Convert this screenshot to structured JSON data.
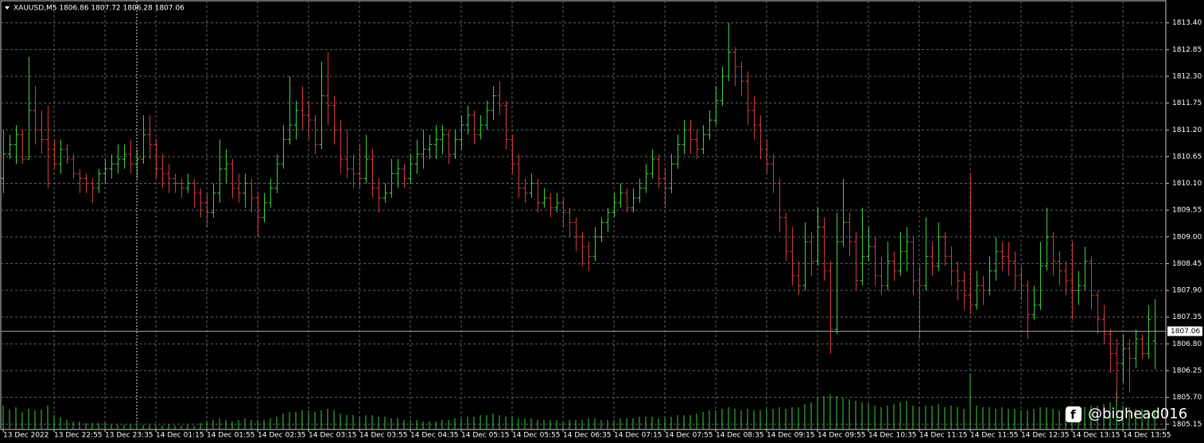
{
  "chart_data": {
    "type": "ohlc",
    "title": "XAUUSD,M5  1806.86 1807.72 1806.28 1807.06",
    "watermark": "@bighead016",
    "up_color": "#3ed13e",
    "down_color": "#d33a3a",
    "volume_color": "#3ed13e",
    "grid": true,
    "ylim": [
      1805.04,
      1813.87
    ],
    "yticks": [
      1805.15,
      {
        "value": 1805.7,
        "label": "1805.70"
      },
      1806.25,
      {
        "value": 1806.8,
        "label": "1806.80"
      },
      1807.35,
      {
        "value": 1807.9,
        "label": "1807.90"
      },
      1808.45,
      {
        "value": 1809,
        "label": "1809.00"
      },
      1809.55,
      {
        "value": 1810.1,
        "label": "1810.10"
      },
      1810.65,
      {
        "value": 1811.2,
        "label": "1811.20"
      },
      1811.75,
      {
        "value": 1812.3,
        "label": "1812.30"
      },
      1812.85,
      {
        "value": 1813.4,
        "label": "1813.40"
      }
    ],
    "categories": [
      "13 Dec 2022",
      null,
      null,
      null,
      null,
      null,
      null,
      null,
      "13 Dec 22:55",
      null,
      null,
      null,
      null,
      null,
      null,
      null,
      "13 Dec 23:35",
      null,
      null,
      null,
      null,
      null,
      null,
      null,
      "14 Dec 01:15",
      null,
      null,
      null,
      null,
      null,
      null,
      null,
      "14 Dec 01:55",
      null,
      null,
      null,
      null,
      null,
      null,
      null,
      "14 Dec 02:35",
      null,
      null,
      null,
      null,
      null,
      null,
      null,
      "14 Dec 03:15",
      null,
      null,
      null,
      null,
      null,
      null,
      null,
      "14 Dec 03:55",
      null,
      null,
      null,
      null,
      null,
      null,
      null,
      "14 Dec 04:35",
      null,
      null,
      null,
      null,
      null,
      null,
      null,
      "14 Dec 05:15",
      null,
      null,
      null,
      null,
      null,
      null,
      null,
      "14 Dec 05:55",
      null,
      null,
      null,
      null,
      null,
      null,
      null,
      "14 Dec 06:35",
      null,
      null,
      null,
      null,
      null,
      null,
      null,
      "14 Dec 07:15",
      null,
      null,
      null,
      null,
      null,
      null,
      null,
      "14 Dec 07:55",
      null,
      null,
      null,
      null,
      null,
      null,
      null,
      "14 Dec 08:35",
      null,
      null,
      null,
      null,
      null,
      null,
      null,
      "14 Dec 09:15",
      null,
      null,
      null,
      null,
      null,
      null,
      null,
      "14 Dec 09:55",
      null,
      null,
      null,
      null,
      null,
      null,
      null,
      "14 Dec 10:35",
      null,
      null,
      null,
      null,
      null,
      null,
      null,
      "14 Dec 11:15",
      null,
      null,
      null,
      null,
      null,
      null,
      null,
      "14 Dec 11:55",
      null,
      null,
      null,
      null,
      null,
      null,
      null,
      "14 Dec 12:35",
      null,
      null,
      null,
      null,
      null,
      null,
      null,
      "14 Dec 13:15",
      null,
      null,
      null,
      null,
      null,
      null,
      null,
      "14 Dec 13:55",
      null,
      null,
      null,
      null,
      null
    ],
    "bars": [
      [
        1810.2,
        1811.2,
        1809.9,
        1810.7
      ],
      [
        1810.7,
        1811.1,
        1810.6,
        1810.9
      ],
      [
        1810.9,
        1811.3,
        1810.5,
        1811.1
      ],
      [
        1811.1,
        1811.2,
        1810.5,
        1810.6
      ],
      [
        1810.6,
        1812.7,
        1810.6,
        1811.6
      ],
      [
        1811.6,
        1812.1,
        1810.9,
        1811.2
      ],
      [
        1811.2,
        1811.6,
        1810.7,
        1811.0
      ],
      [
        1811.0,
        1811.7,
        1810.0,
        1810.8
      ],
      [
        1810.8,
        1811.0,
        1810.4,
        1810.5
      ],
      [
        1810.5,
        1811.0,
        1810.3,
        1810.8
      ],
      [
        1810.8,
        1810.9,
        1810.5,
        1810.6
      ],
      [
        1810.6,
        1810.7,
        1810.2,
        1810.3
      ],
      [
        1810.3,
        1810.4,
        1809.9,
        1810.2
      ],
      [
        1810.2,
        1810.3,
        1809.9,
        1810.1
      ],
      [
        1810.1,
        1810.2,
        1809.7,
        1810.0
      ],
      [
        1810.0,
        1810.4,
        1809.9,
        1810.3
      ],
      [
        1810.3,
        1810.6,
        1810.1,
        1810.4
      ],
      [
        1810.4,
        1810.7,
        1810.2,
        1810.5
      ],
      [
        1810.5,
        1810.9,
        1810.3,
        1810.6
      ],
      [
        1810.6,
        1810.9,
        1810.4,
        1810.7
      ],
      [
        1810.7,
        1811.0,
        1810.3,
        1810.5
      ],
      [
        1810.5,
        1810.8,
        1810.2,
        1810.6
      ],
      [
        1810.6,
        1811.5,
        1810.5,
        1811.1
      ],
      [
        1811.1,
        1811.5,
        1810.6,
        1810.9
      ],
      [
        1810.9,
        1811.0,
        1810.2,
        1810.4
      ],
      [
        1810.4,
        1810.7,
        1810.0,
        1810.3
      ],
      [
        1810.3,
        1810.5,
        1809.9,
        1810.2
      ],
      [
        1810.2,
        1810.3,
        1809.9,
        1810.1
      ],
      [
        1810.1,
        1810.2,
        1809.8,
        1810.0
      ],
      [
        1810.0,
        1810.3,
        1809.9,
        1810.1
      ],
      [
        1810.1,
        1810.2,
        1809.6,
        1809.9
      ],
      [
        1809.9,
        1810.0,
        1809.4,
        1809.7
      ],
      [
        1809.7,
        1809.9,
        1809.2,
        1809.5
      ],
      [
        1809.5,
        1810.1,
        1809.4,
        1809.9
      ],
      [
        1809.9,
        1811.0,
        1809.7,
        1810.4
      ],
      [
        1810.4,
        1810.8,
        1810.1,
        1810.5
      ],
      [
        1810.5,
        1810.6,
        1809.8,
        1810.0
      ],
      [
        1810.0,
        1810.3,
        1809.7,
        1809.9
      ],
      [
        1809.9,
        1810.3,
        1809.6,
        1810.1
      ],
      [
        1810.1,
        1810.2,
        1809.5,
        1809.8
      ],
      [
        1809.8,
        1809.9,
        1809.0,
        1809.4
      ],
      [
        1809.4,
        1809.9,
        1809.3,
        1809.7
      ],
      [
        1809.7,
        1810.2,
        1809.6,
        1810.0
      ],
      [
        1810.0,
        1810.7,
        1809.9,
        1810.5
      ],
      [
        1810.5,
        1811.3,
        1810.4,
        1811.0
      ],
      [
        1811.0,
        1812.3,
        1810.9,
        1811.3
      ],
      [
        1811.3,
        1811.8,
        1811.0,
        1811.6
      ],
      [
        1811.6,
        1812.1,
        1811.2,
        1811.5
      ],
      [
        1811.5,
        1811.8,
        1811.0,
        1811.4
      ],
      [
        1811.4,
        1811.5,
        1810.7,
        1810.9
      ],
      [
        1810.9,
        1812.6,
        1810.8,
        1811.9
      ],
      [
        1811.9,
        1812.8,
        1811.3,
        1811.7
      ],
      [
        1811.7,
        1811.9,
        1810.9,
        1811.2
      ],
      [
        1811.2,
        1811.4,
        1810.3,
        1810.6
      ],
      [
        1810.6,
        1811.2,
        1810.2,
        1810.4
      ],
      [
        1810.4,
        1810.7,
        1810.0,
        1810.3
      ],
      [
        1810.3,
        1810.9,
        1810.0,
        1810.2
      ],
      [
        1810.2,
        1811.1,
        1810.1,
        1810.6
      ],
      [
        1810.6,
        1810.8,
        1809.8,
        1810.0
      ],
      [
        1810.0,
        1810.2,
        1809.5,
        1809.8
      ],
      [
        1809.8,
        1810.1,
        1809.7,
        1809.9
      ],
      [
        1809.9,
        1810.6,
        1809.8,
        1810.3
      ],
      [
        1810.3,
        1810.6,
        1810.0,
        1810.4
      ],
      [
        1810.4,
        1810.5,
        1810.0,
        1810.2
      ],
      [
        1810.2,
        1810.7,
        1810.1,
        1810.5
      ],
      [
        1810.5,
        1811.0,
        1810.3,
        1810.7
      ],
      [
        1810.7,
        1811.2,
        1810.4,
        1810.8
      ],
      [
        1810.8,
        1811.1,
        1810.6,
        1810.9
      ],
      [
        1810.9,
        1811.3,
        1810.6,
        1811.0
      ],
      [
        1811.0,
        1811.3,
        1810.7,
        1811.1
      ],
      [
        1811.1,
        1811.2,
        1810.5,
        1810.7
      ],
      [
        1810.7,
        1811.2,
        1810.6,
        1811.0
      ],
      [
        1811.0,
        1811.5,
        1810.8,
        1811.3
      ],
      [
        1811.3,
        1811.7,
        1811.1,
        1811.5
      ],
      [
        1811.5,
        1811.6,
        1810.9,
        1811.1
      ],
      [
        1811.1,
        1811.5,
        1811.0,
        1811.3
      ],
      [
        1811.3,
        1811.8,
        1811.2,
        1811.6
      ],
      [
        1811.6,
        1812.1,
        1811.4,
        1811.9
      ],
      [
        1811.9,
        1812.2,
        1811.5,
        1811.7
      ],
      [
        1811.7,
        1811.8,
        1810.8,
        1811.0
      ],
      [
        1811.0,
        1811.1,
        1810.3,
        1810.5
      ],
      [
        1810.5,
        1810.7,
        1809.8,
        1810.0
      ],
      [
        1810.0,
        1810.2,
        1809.7,
        1809.9
      ],
      [
        1809.9,
        1810.3,
        1809.8,
        1810.1
      ],
      [
        1810.1,
        1810.2,
        1809.5,
        1809.7
      ],
      [
        1809.7,
        1810.0,
        1809.6,
        1809.8
      ],
      [
        1809.8,
        1809.9,
        1809.4,
        1809.6
      ],
      [
        1809.6,
        1809.9,
        1809.5,
        1809.7
      ],
      [
        1809.7,
        1809.8,
        1809.2,
        1809.5
      ],
      [
        1809.5,
        1809.6,
        1809.0,
        1809.3
      ],
      [
        1809.3,
        1809.4,
        1808.7,
        1809.0
      ],
      [
        1809.0,
        1809.1,
        1808.4,
        1808.8
      ],
      [
        1808.8,
        1808.9,
        1808.3,
        1808.6
      ],
      [
        1808.6,
        1809.2,
        1808.5,
        1809.0
      ],
      [
        1809.0,
        1809.4,
        1808.9,
        1809.3
      ],
      [
        1809.3,
        1809.6,
        1809.1,
        1809.5
      ],
      [
        1809.5,
        1809.9,
        1809.4,
        1809.7
      ],
      [
        1809.7,
        1810.1,
        1809.6,
        1809.9
      ],
      [
        1809.9,
        1810.0,
        1809.5,
        1809.6
      ],
      [
        1809.6,
        1810.0,
        1809.5,
        1809.8
      ],
      [
        1809.8,
        1810.2,
        1809.7,
        1810.0
      ],
      [
        1810.0,
        1810.5,
        1809.9,
        1810.3
      ],
      [
        1810.3,
        1810.8,
        1810.2,
        1810.6
      ],
      [
        1810.6,
        1810.7,
        1810.0,
        1810.2
      ],
      [
        1810.2,
        1810.4,
        1809.6,
        1810.0
      ],
      [
        1810.0,
        1810.7,
        1809.9,
        1810.5
      ],
      [
        1810.5,
        1811.1,
        1810.4,
        1810.9
      ],
      [
        1810.9,
        1811.4,
        1810.7,
        1811.2
      ],
      [
        1811.2,
        1811.4,
        1810.7,
        1811.0
      ],
      [
        1811.0,
        1811.2,
        1810.6,
        1810.8
      ],
      [
        1810.8,
        1811.3,
        1810.7,
        1811.1
      ],
      [
        1811.1,
        1811.6,
        1811.0,
        1811.4
      ],
      [
        1811.4,
        1812.1,
        1811.3,
        1811.8
      ],
      [
        1811.8,
        1812.5,
        1811.7,
        1812.3
      ],
      [
        1812.3,
        1813.4,
        1812.2,
        1812.8
      ],
      [
        1812.8,
        1812.9,
        1812.1,
        1812.5
      ],
      [
        1812.5,
        1812.6,
        1811.9,
        1812.2
      ],
      [
        1812.2,
        1812.4,
        1811.3,
        1811.6
      ],
      [
        1811.6,
        1811.9,
        1811.0,
        1811.3
      ],
      [
        1811.3,
        1811.5,
        1810.6,
        1810.8
      ],
      [
        1810.8,
        1811.0,
        1810.3,
        1810.5
      ],
      [
        1810.5,
        1810.7,
        1809.9,
        1810.1
      ],
      [
        1810.1,
        1810.2,
        1809.1,
        1809.4
      ],
      [
        1809.4,
        1809.5,
        1808.5,
        1808.7
      ],
      [
        1808.7,
        1809.2,
        1808.0,
        1808.2
      ],
      [
        1808.2,
        1808.5,
        1807.8,
        1808.0
      ],
      [
        1808.0,
        1809.3,
        1807.9,
        1808.9
      ],
      [
        1808.9,
        1809.1,
        1808.2,
        1808.5
      ],
      [
        1808.5,
        1809.6,
        1808.4,
        1809.2
      ],
      [
        1809.2,
        1809.4,
        1808.1,
        1808.3
      ],
      [
        1808.3,
        1808.5,
        1806.6,
        1807.1
      ],
      [
        1807.1,
        1809.5,
        1807.0,
        1808.9
      ],
      [
        1808.9,
        1810.2,
        1808.8,
        1809.3
      ],
      [
        1809.3,
        1809.5,
        1808.6,
        1808.9
      ],
      [
        1808.9,
        1809.1,
        1807.9,
        1808.1
      ],
      [
        1808.1,
        1809.6,
        1808.0,
        1808.6
      ],
      [
        1808.6,
        1809.2,
        1808.5,
        1808.8
      ],
      [
        1808.8,
        1809.0,
        1808.0,
        1808.2
      ],
      [
        1808.2,
        1808.6,
        1807.8,
        1808.0
      ],
      [
        1808.0,
        1808.9,
        1807.9,
        1808.5
      ],
      [
        1808.5,
        1808.7,
        1808.1,
        1808.3
      ],
      [
        1808.3,
        1809.1,
        1808.2,
        1808.7
      ],
      [
        1808.7,
        1809.2,
        1808.3,
        1808.9
      ],
      [
        1808.9,
        1809.0,
        1807.8,
        1808.1
      ],
      [
        1808.1,
        1808.4,
        1806.9,
        1808.0
      ],
      [
        1808.0,
        1809.4,
        1807.9,
        1808.6
      ],
      [
        1808.6,
        1808.9,
        1808.2,
        1808.4
      ],
      [
        1808.4,
        1809.3,
        1808.3,
        1809.0
      ],
      [
        1809.0,
        1809.1,
        1808.4,
        1808.6
      ],
      [
        1808.6,
        1808.8,
        1808.0,
        1808.3
      ],
      [
        1808.3,
        1808.5,
        1807.7,
        1808.1
      ],
      [
        1808.1,
        1808.3,
        1807.5,
        1807.8
      ],
      [
        1807.8,
        1810.3,
        1807.4,
        1807.6
      ],
      [
        1807.6,
        1808.3,
        1807.5,
        1808.0
      ],
      [
        1808.0,
        1808.2,
        1807.6,
        1807.9
      ],
      [
        1807.9,
        1808.6,
        1807.8,
        1808.3
      ],
      [
        1808.3,
        1809.0,
        1808.1,
        1808.7
      ],
      [
        1808.7,
        1808.9,
        1808.3,
        1808.6
      ],
      [
        1808.6,
        1808.9,
        1808.2,
        1808.5
      ],
      [
        1808.5,
        1808.7,
        1807.9,
        1808.2
      ],
      [
        1808.2,
        1808.4,
        1807.7,
        1808.0
      ],
      [
        1808.0,
        1808.1,
        1806.9,
        1807.4
      ],
      [
        1807.4,
        1808.0,
        1807.3,
        1807.6
      ],
      [
        1807.6,
        1808.9,
        1807.5,
        1808.4
      ],
      [
        1808.4,
        1809.6,
        1808.3,
        1809.0
      ],
      [
        1809.0,
        1809.1,
        1808.2,
        1808.5
      ],
      [
        1808.5,
        1808.7,
        1808.0,
        1808.3
      ],
      [
        1808.3,
        1808.5,
        1807.8,
        1808.1
      ],
      [
        1808.1,
        1808.9,
        1807.3,
        1807.9
      ],
      [
        1807.9,
        1808.3,
        1807.6,
        1808.0
      ],
      [
        1808.0,
        1808.8,
        1807.9,
        1808.5
      ],
      [
        1808.5,
        1808.6,
        1807.5,
        1807.8
      ],
      [
        1807.8,
        1807.9,
        1807.0,
        1807.3
      ],
      [
        1807.3,
        1807.6,
        1806.8,
        1807.0
      ],
      [
        1807.0,
        1807.1,
        1806.2,
        1806.6
      ],
      [
        1806.6,
        1806.9,
        1805.6,
        1806.4
      ],
      [
        1806.4,
        1807.0,
        1806.0,
        1806.7
      ],
      [
        1806.7,
        1806.9,
        1805.8,
        1806.5
      ],
      [
        1806.5,
        1807.1,
        1806.3,
        1806.9
      ],
      [
        1806.9,
        1807.0,
        1806.5,
        1806.6
      ],
      [
        1806.6,
        1807.6,
        1806.5,
        1807.3
      ],
      [
        1806.86,
        1807.72,
        1806.28,
        1807.06
      ]
    ],
    "volumes": [
      30,
      25,
      28,
      22,
      26,
      24,
      25,
      30,
      18,
      15,
      12,
      10,
      10,
      8,
      8,
      8,
      8,
      6,
      6,
      6,
      6,
      8,
      6,
      6,
      6,
      5,
      6,
      5,
      5,
      6,
      5,
      8,
      10,
      12,
      14,
      12,
      10,
      12,
      14,
      12,
      12,
      12,
      14,
      16,
      20,
      22,
      22,
      24,
      24,
      22,
      24,
      26,
      24,
      20,
      18,
      18,
      16,
      18,
      18,
      16,
      16,
      14,
      14,
      12,
      12,
      12,
      10,
      10,
      10,
      12,
      12,
      14,
      14,
      16,
      16,
      18,
      18,
      20,
      18,
      16,
      16,
      14,
      14,
      14,
      12,
      12,
      12,
      12,
      10,
      12,
      12,
      12,
      14,
      14,
      12,
      12,
      12,
      14,
      14,
      14,
      16,
      16,
      16,
      14,
      14,
      16,
      18,
      18,
      18,
      20,
      22,
      24,
      24,
      26,
      28,
      26,
      24,
      26,
      24,
      24,
      26,
      26,
      28,
      26,
      28,
      28,
      32,
      34,
      40,
      42,
      44,
      42,
      40,
      38,
      36,
      34,
      32,
      30,
      28,
      30,
      32,
      34,
      36,
      30,
      28,
      30,
      30,
      32,
      28,
      30,
      28,
      26,
      70,
      30,
      28,
      28,
      26,
      28,
      26,
      26,
      24,
      24,
      26,
      28,
      28,
      26,
      24,
      24,
      24,
      26,
      28,
      30,
      30,
      32,
      34,
      48,
      30,
      28,
      26,
      26,
      24,
      22
    ]
  }
}
